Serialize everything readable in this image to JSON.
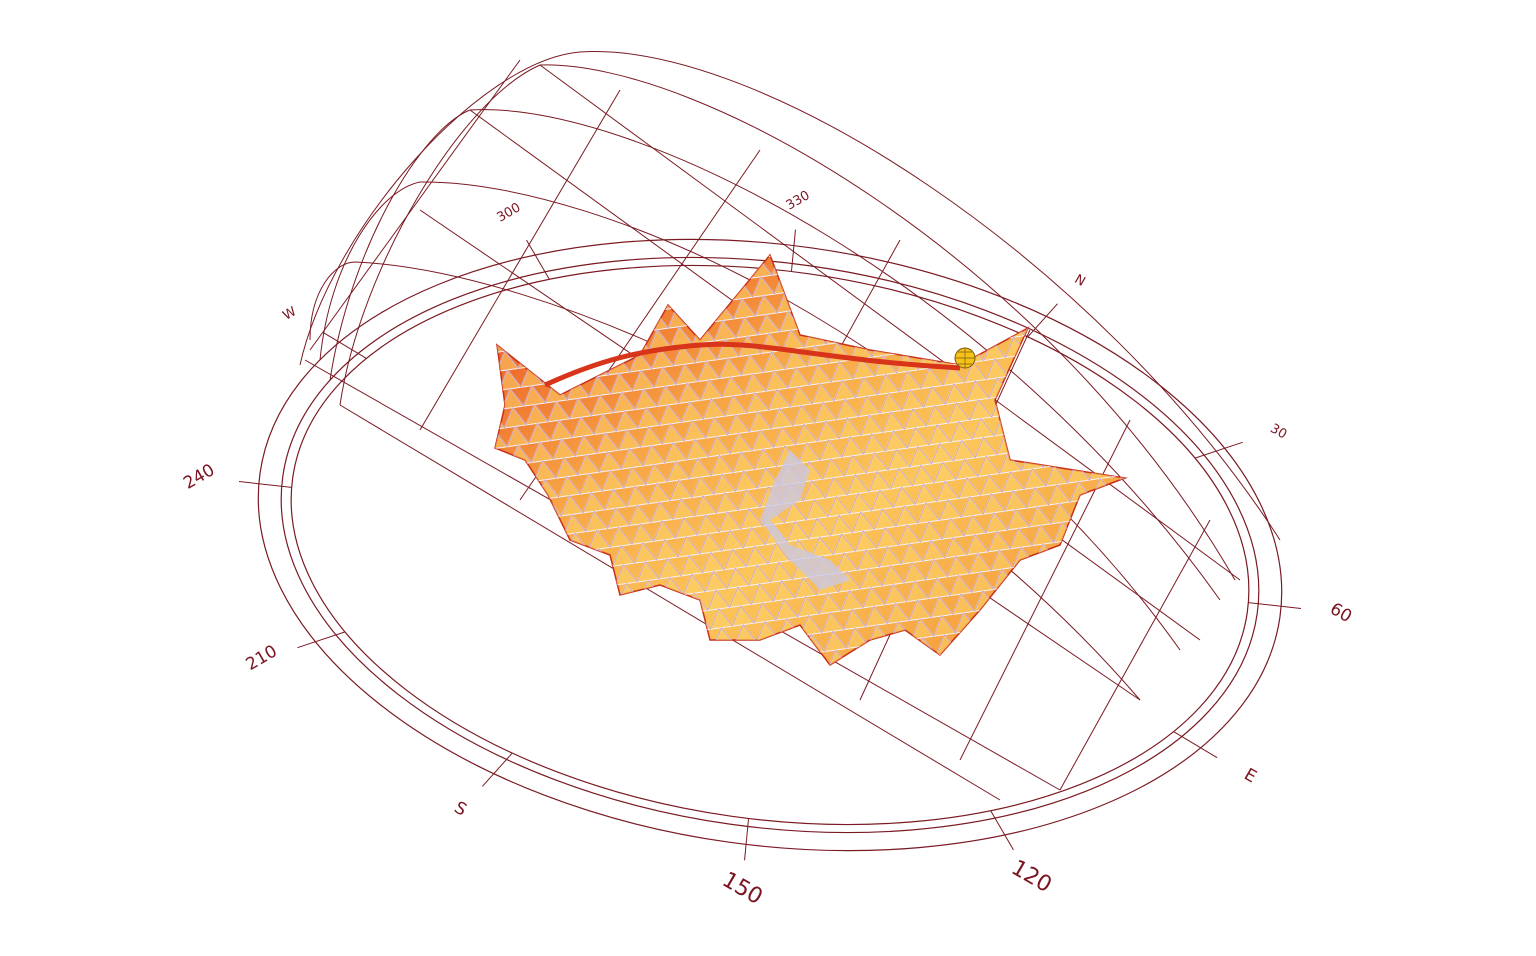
{
  "diagram": {
    "colors": {
      "line": "#7a1a22",
      "membrane_dark": "#e0401a",
      "membrane_mid": "#f59a3a",
      "membrane_light": "#fde35a",
      "shade": "#c8c8e8"
    },
    "compass_labels": [
      {
        "text": "N",
        "az": 0
      },
      {
        "text": "30",
        "az": 30
      },
      {
        "text": "60",
        "az": 60
      },
      {
        "text": "E",
        "az": 90
      },
      {
        "text": "120",
        "az": 120
      },
      {
        "text": "150",
        "az": 150
      },
      {
        "text": "S",
        "az": 180
      },
      {
        "text": "210",
        "az": 210
      },
      {
        "text": "240",
        "az": 240
      },
      {
        "text": "W",
        "az": 270
      },
      {
        "text": "300",
        "az": 300
      },
      {
        "text": "330",
        "az": 330
      }
    ],
    "sun_marker": "sun-icon"
  }
}
